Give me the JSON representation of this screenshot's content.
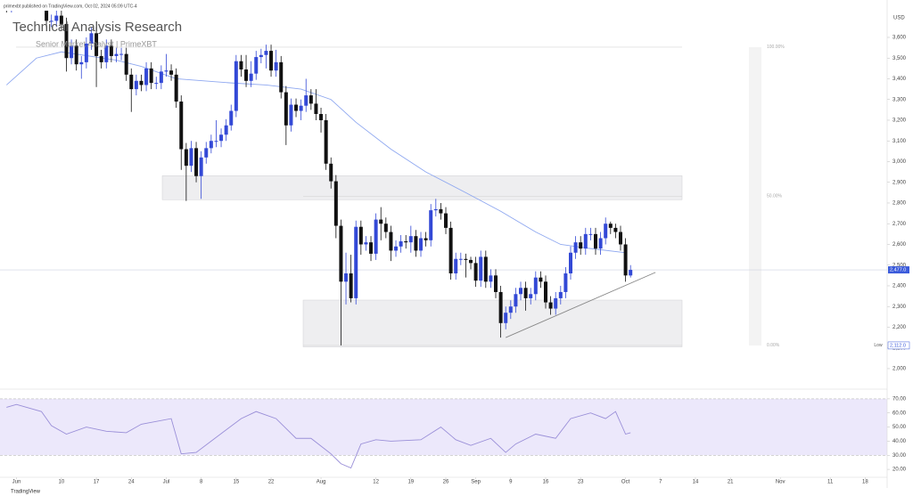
{
  "chart_data": {
    "type": "candlestick",
    "header": "primexbt published on TradingView.com, Oct 02, 2024 05:09 UTC-4",
    "title": "Technical Analysis Research",
    "subtitle": "Senior Market Analyst | PrimeXBT",
    "currency": "USD",
    "footer": "TradingView",
    "up_color": "#3349d6",
    "down_color": "#111111",
    "open": [
      3760,
      3750,
      3760,
      3815,
      3780,
      3770,
      3810,
      3865,
      3810,
      3680,
      3680,
      3705,
      3665,
      3500,
      3560,
      3470,
      3480,
      3570,
      3620,
      3510,
      3480,
      3560,
      3510,
      3520,
      3520,
      3420,
      3350,
      3390,
      3370,
      3450,
      3380,
      3380,
      3435,
      3440,
      3420,
      3290,
      3060,
      2980,
      3065,
      2930,
      3020,
      3065,
      3100,
      3100,
      3130,
      3175,
      3245,
      3485,
      3445,
      3390,
      3425,
      3505,
      3515,
      3535,
      3440,
      3480,
      3335,
      3175,
      3275,
      3245,
      3270,
      3320,
      3280,
      3230,
      3200,
      2990,
      2905,
      2690,
      2420,
      2460,
      2340,
      2685,
      2600,
      2610,
      2555,
      2720,
      2700,
      2660,
      2570,
      2590,
      2615,
      2610,
      2640,
      2570,
      2630,
      2620,
      2765,
      2770,
      2750,
      2680,
      2460,
      2530,
      2530,
      2525,
      2510,
      2425,
      2540,
      2420,
      2450,
      2370,
      2220,
      2270,
      2300,
      2360,
      2390,
      2340,
      2360,
      2440,
      2420,
      2320,
      2290,
      2340,
      2370,
      2460,
      2560,
      2610,
      2580,
      2650,
      2650,
      2580,
      2630,
      2700,
      2680,
      2660,
      2600,
      2450
    ],
    "high": [
      3790,
      3790,
      3845,
      3845,
      3810,
      3840,
      3890,
      3895,
      3840,
      3710,
      3735,
      3735,
      3695,
      3590,
      3590,
      3510,
      3600,
      3650,
      3650,
      3540,
      3590,
      3590,
      3550,
      3550,
      3550,
      3450,
      3420,
      3420,
      3480,
      3480,
      3410,
      3465,
      3520,
      3470,
      3450,
      3320,
      3090,
      3100,
      3095,
      3050,
      3095,
      3130,
      3200,
      3160,
      3205,
      3275,
      3515,
      3515,
      3515,
      3485,
      3535,
      3545,
      3565,
      3565,
      3540,
      3510,
      3365,
      3305,
      3305,
      3300,
      3400,
      3350,
      3350,
      3260,
      3230,
      3020,
      2935,
      2720,
      2560,
      2550,
      2715,
      2715,
      2640,
      2640,
      2750,
      2780,
      2730,
      2690,
      2620,
      2645,
      2645,
      2690,
      2670,
      2660,
      2660,
      2795,
      2820,
      2800,
      2780,
      2710,
      2560,
      2560,
      2555,
      2540,
      2540,
      2570,
      2570,
      2480,
      2480,
      2400,
      2300,
      2330,
      2390,
      2420,
      2420,
      2390,
      2470,
      2470,
      2450,
      2350,
      2370,
      2400,
      2490,
      2590,
      2640,
      2640,
      2680,
      2680,
      2680,
      2660,
      2730,
      2710,
      2700,
      2690,
      2630,
      2500
    ],
    "low": [
      3720,
      3720,
      3730,
      3750,
      3740,
      3740,
      3780,
      3780,
      3650,
      3650,
      3650,
      3635,
      3435,
      3470,
      3440,
      3400,
      3450,
      3540,
      3360,
      3450,
      3450,
      3480,
      3480,
      3490,
      3390,
      3240,
      3320,
      3340,
      3340,
      3350,
      3350,
      3350,
      3410,
      3390,
      3260,
      2960,
      2810,
      2950,
      2900,
      2820,
      2990,
      3040,
      3070,
      3070,
      3100,
      3150,
      3215,
      3410,
      3360,
      3360,
      3395,
      3475,
      3450,
      3410,
      3410,
      3305,
      3080,
      3145,
      3215,
      3200,
      3240,
      3250,
      3200,
      3140,
      2960,
      2870,
      2630,
      2112,
      2310,
      2320,
      2310,
      2550,
      2570,
      2520,
      2525,
      2620,
      2630,
      2520,
      2540,
      2560,
      2580,
      2560,
      2540,
      2540,
      2590,
      2590,
      2735,
      2720,
      2650,
      2430,
      2430,
      2500,
      2440,
      2480,
      2395,
      2395,
      2390,
      2390,
      2340,
      2150,
      2190,
      2240,
      2270,
      2330,
      2280,
      2310,
      2330,
      2390,
      2290,
      2260,
      2260,
      2310,
      2340,
      2430,
      2530,
      2550,
      2550,
      2620,
      2550,
      2550,
      2600,
      2650,
      2630,
      2570,
      2420,
      2440
    ],
    "close": [
      3750,
      3760,
      3815,
      3780,
      3770,
      3810,
      3865,
      3810,
      3680,
      3680,
      3705,
      3665,
      3500,
      3560,
      3470,
      3480,
      3570,
      3620,
      3510,
      3480,
      3560,
      3510,
      3520,
      3520,
      3420,
      3350,
      3390,
      3370,
      3450,
      3380,
      3380,
      3435,
      3440,
      3420,
      3290,
      3060,
      2980,
      3065,
      2930,
      3020,
      3065,
      3100,
      3100,
      3130,
      3175,
      3245,
      3485,
      3445,
      3390,
      3425,
      3505,
      3515,
      3535,
      3440,
      3480,
      3335,
      3175,
      3275,
      3245,
      3270,
      3320,
      3280,
      3230,
      3200,
      2990,
      2905,
      2690,
      2420,
      2460,
      2340,
      2685,
      2600,
      2610,
      2555,
      2720,
      2700,
      2660,
      2570,
      2590,
      2615,
      2610,
      2640,
      2570,
      2630,
      2620,
      2765,
      2770,
      2750,
      2680,
      2460,
      2530,
      2530,
      2525,
      2510,
      2425,
      2540,
      2420,
      2450,
      2370,
      2220,
      2270,
      2300,
      2360,
      2390,
      2340,
      2360,
      2440,
      2420,
      2320,
      2290,
      2340,
      2370,
      2460,
      2560,
      2610,
      2580,
      2650,
      2650,
      2580,
      2630,
      2700,
      2680,
      2660,
      2600,
      2450,
      2477
    ],
    "last_price_label": "2,477.0",
    "low_marker": {
      "label": "Low",
      "value_label": "2,112.0"
    },
    "moving_average": {
      "color": "#8fa8f0",
      "x": [
        0,
        6,
        11,
        22,
        27,
        34,
        45,
        52,
        59,
        65,
        70,
        77,
        84,
        92,
        99,
        106,
        111,
        117,
        124
      ],
      "values": [
        3370,
        3500,
        3530,
        3490,
        3460,
        3400,
        3380,
        3370,
        3350,
        3300,
        3190,
        3060,
        2950,
        2850,
        2760,
        2660,
        2600,
        2580,
        2560
      ]
    },
    "zones": [
      {
        "top": 2932,
        "bottom": 2816
      },
      {
        "top": 2331,
        "bottom": 2105
      }
    ],
    "fib_levels": [
      {
        "value": 3553,
        "label": "100.00%"
      },
      {
        "value": 2832.5,
        "label": "50.00%"
      },
      {
        "value": 2112,
        "label": "0.00%"
      }
    ],
    "trendline": {
      "x": [
        100,
        130
      ],
      "values": [
        2150,
        2465
      ]
    },
    "xlim": [
      -1.3,
      176.4
    ],
    "xticks": [
      {
        "value": 2,
        "label": "Jun"
      },
      {
        "value": 11,
        "label": "10"
      },
      {
        "value": 18,
        "label": "17"
      },
      {
        "value": 25,
        "label": "24"
      },
      {
        "value": 32,
        "label": "Jul"
      },
      {
        "value": 39,
        "label": "8"
      },
      {
        "value": 46,
        "label": "15"
      },
      {
        "value": 53,
        "label": "22"
      },
      {
        "value": 63,
        "label": "Aug"
      },
      {
        "value": 74,
        "label": "12"
      },
      {
        "value": 81,
        "label": "19"
      },
      {
        "value": 88,
        "label": "26"
      },
      {
        "value": 94,
        "label": "Sep"
      },
      {
        "value": 101,
        "label": "9"
      },
      {
        "value": 108,
        "label": "16"
      },
      {
        "value": 115,
        "label": "23"
      },
      {
        "value": 124,
        "label": "Oct"
      },
      {
        "value": 131,
        "label": "7"
      },
      {
        "value": 138,
        "label": "14"
      },
      {
        "value": 145,
        "label": "21"
      },
      {
        "value": 155,
        "label": "Nov"
      },
      {
        "value": 165,
        "label": "11"
      },
      {
        "value": 172,
        "label": "18"
      }
    ],
    "ylim": [
      1931,
      3729
    ],
    "yticks": [
      {
        "value": 2000,
        "label": "2,000"
      },
      {
        "value": 2100,
        "label": "2,100"
      },
      {
        "value": 2200,
        "label": "2,200"
      },
      {
        "value": 2300,
        "label": "2,300"
      },
      {
        "value": 2400,
        "label": "2,400"
      },
      {
        "value": 2500,
        "label": "2,500"
      },
      {
        "value": 2600,
        "label": "2,600"
      },
      {
        "value": 2700,
        "label": "2,700"
      },
      {
        "value": 2800,
        "label": "2,800"
      },
      {
        "value": 2900,
        "label": "2,900"
      },
      {
        "value": 3000,
        "label": "3,000"
      },
      {
        "value": 3100,
        "label": "3,100"
      },
      {
        "value": 3200,
        "label": "3,200"
      },
      {
        "value": 3300,
        "label": "3,300"
      },
      {
        "value": 3400,
        "label": "3,400"
      },
      {
        "value": 3500,
        "label": "3,500"
      },
      {
        "value": 3600,
        "label": "3,600"
      }
    ],
    "rsi": {
      "color": "#9a8fd8",
      "band_color": "#ece8fb",
      "x": [
        0,
        2,
        7,
        9,
        12,
        16,
        20,
        24,
        27,
        33,
        35,
        38,
        41,
        47,
        50,
        54,
        58,
        61,
        65,
        67,
        69,
        71,
        74,
        77,
        83,
        87,
        90,
        93,
        97,
        100,
        102,
        106,
        110,
        113,
        117,
        120,
        122,
        124,
        125
      ],
      "values": [
        64,
        66,
        61,
        51,
        45,
        50,
        47,
        46,
        52,
        56,
        31,
        32,
        40,
        56,
        61,
        56,
        42,
        42,
        31,
        24,
        21,
        38,
        41,
        40,
        41,
        50,
        41,
        37,
        42,
        32,
        38,
        45,
        42,
        56,
        60,
        56,
        61,
        45,
        46
      ],
      "band": [
        30,
        70
      ],
      "ylim": [
        15,
        75
      ],
      "yticks": [
        {
          "value": 20,
          "label": "20.00"
        },
        {
          "value": 30,
          "label": "30.00"
        },
        {
          "value": 40,
          "label": "40.00"
        },
        {
          "value": 50,
          "label": "50.00"
        },
        {
          "value": 60,
          "label": "60.00"
        },
        {
          "value": 70,
          "label": "70.00"
        }
      ]
    }
  }
}
